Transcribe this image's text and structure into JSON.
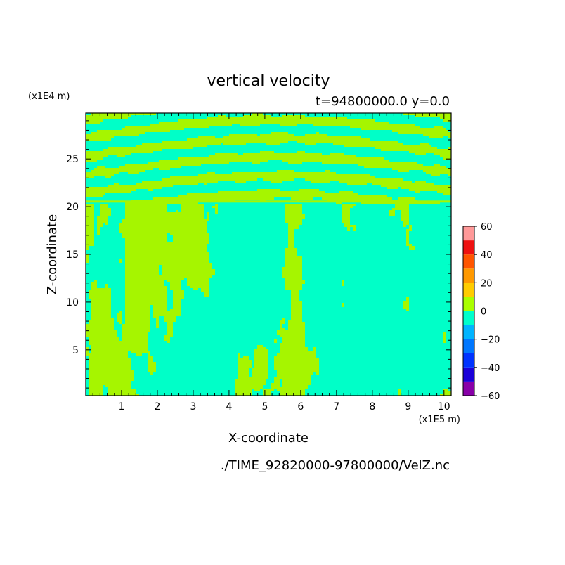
{
  "chart_data": {
    "type": "heatmap",
    "title": "vertical velocity",
    "subtitle": "t=94800000.0 y=0.0",
    "xlabel": "X-coordinate",
    "ylabel": "Z-coordinate",
    "x_unit": "(x1E5 m)",
    "y_unit": "(x1E4 m)",
    "source_file": "./TIME_92820000-97800000/VelZ.nc",
    "xlim": [
      0,
      10.2
    ],
    "ylim": [
      0.2,
      29.8
    ],
    "x_ticks": [
      1,
      2,
      3,
      4,
      5,
      6,
      7,
      8,
      9,
      10
    ],
    "x_tick_labels": [
      "1",
      "2",
      "3",
      "4",
      "5",
      "6",
      "7",
      "8",
      "9",
      "10"
    ],
    "y_ticks": [
      5,
      10,
      15,
      20,
      25
    ],
    "y_tick_labels": [
      "5",
      "10",
      "15",
      "20",
      "25"
    ],
    "colorbar": {
      "levels": [
        -60,
        -50,
        -40,
        -30,
        -20,
        -10,
        0,
        10,
        20,
        30,
        40,
        50,
        60
      ],
      "tick_labels": [
        "60",
        "40",
        "20",
        "0",
        "−20",
        "−40",
        "−60"
      ],
      "colors": [
        "#8800a8",
        "#1a00d8",
        "#0033ff",
        "#0077ff",
        "#00b4ff",
        "#00ffcc",
        "#aaff00",
        "#ffcc00",
        "#ff9900",
        "#ff5500",
        "#ee1111",
        "#ff9999"
      ],
      "tick_values": [
        60,
        40,
        20,
        0,
        -20,
        -40,
        -60
      ]
    },
    "field": {
      "dominant_positive_color": "#a6f500",
      "dominant_negative_color": "#00ffc8",
      "gravity_wave_band_z": [
        20.5,
        29.8
      ],
      "convective_layer_z": [
        0.2,
        20.5
      ]
    },
    "grid": false,
    "legend": "colorbar-right"
  }
}
